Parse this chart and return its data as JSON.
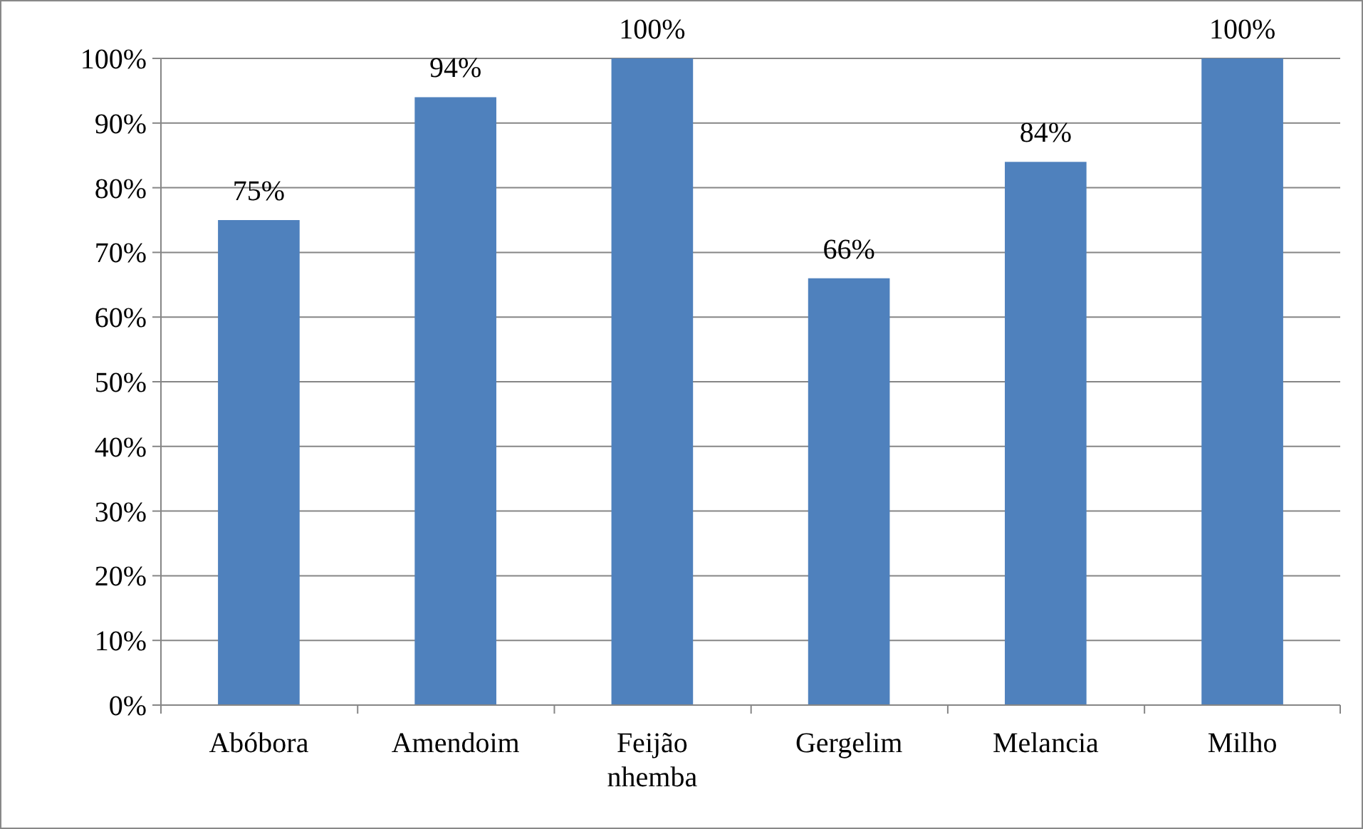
{
  "chart_data": {
    "type": "bar",
    "categories": [
      "Abóbora",
      "Amendoim",
      "Feijão nhemba",
      "Gergelim",
      "Melancia",
      "Milho"
    ],
    "values": [
      75,
      94,
      100,
      66,
      84,
      100
    ],
    "value_labels": [
      "75%",
      "94%",
      "100%",
      "66%",
      "84%",
      "100%"
    ],
    "color": "#4f81bd",
    "ylim": [
      0,
      100
    ],
    "yticks": [
      {
        "value": 0,
        "label": "0%"
      },
      {
        "value": 10,
        "label": "10%"
      },
      {
        "value": 20,
        "label": "20%"
      },
      {
        "value": 30,
        "label": "30%"
      },
      {
        "value": 40,
        "label": "40%"
      },
      {
        "value": 50,
        "label": "50%"
      },
      {
        "value": 60,
        "label": "60%"
      },
      {
        "value": 70,
        "label": "70%"
      },
      {
        "value": 80,
        "label": "80%"
      },
      {
        "value": 90,
        "label": "90%"
      },
      {
        "value": 100,
        "label": "100%"
      }
    ],
    "grid": "y"
  }
}
